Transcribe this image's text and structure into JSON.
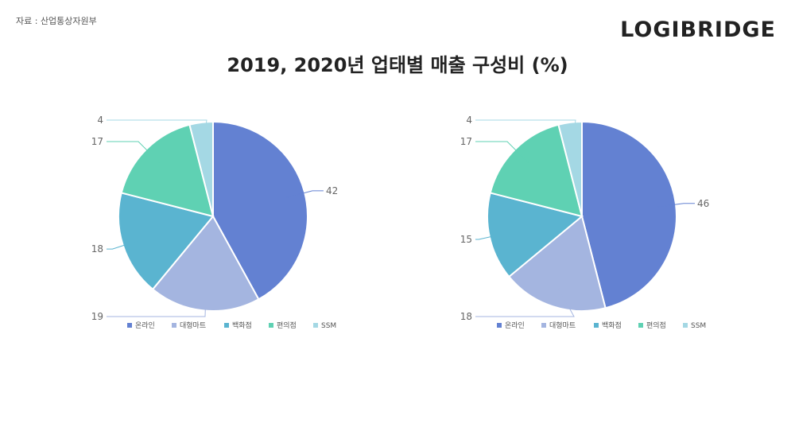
{
  "source_text": "자료 : 산업통상자원부",
  "brand": "LOGIBRIDGE",
  "title": "2019, 2020년 업태별 매출 구성비 (%)",
  "colors": {
    "온라인": "#6381d2",
    "대형마트": "#a4b5e0",
    "백화점": "#5ab4d0",
    "편의점": "#5fd1b3",
    "SSM": "#a4d8e4"
  },
  "chart_data": [
    {
      "type": "pie",
      "categories": [
        "온라인",
        "대형마트",
        "백화점",
        "편의점",
        "SSM"
      ],
      "values": [
        42,
        19,
        18,
        17,
        4
      ],
      "legend": [
        "온라인",
        "대형마트",
        "백화점",
        "편의점",
        "SSM"
      ],
      "legend_position": "bottom"
    },
    {
      "type": "pie",
      "categories": [
        "온라인",
        "대형마트",
        "백화점",
        "편의점",
        "SSM"
      ],
      "values": [
        46,
        18,
        15,
        17,
        4
      ],
      "legend": [
        "온라인",
        "대형마트",
        "백화점",
        "편의점",
        "SSM"
      ],
      "legend_position": "bottom"
    }
  ]
}
